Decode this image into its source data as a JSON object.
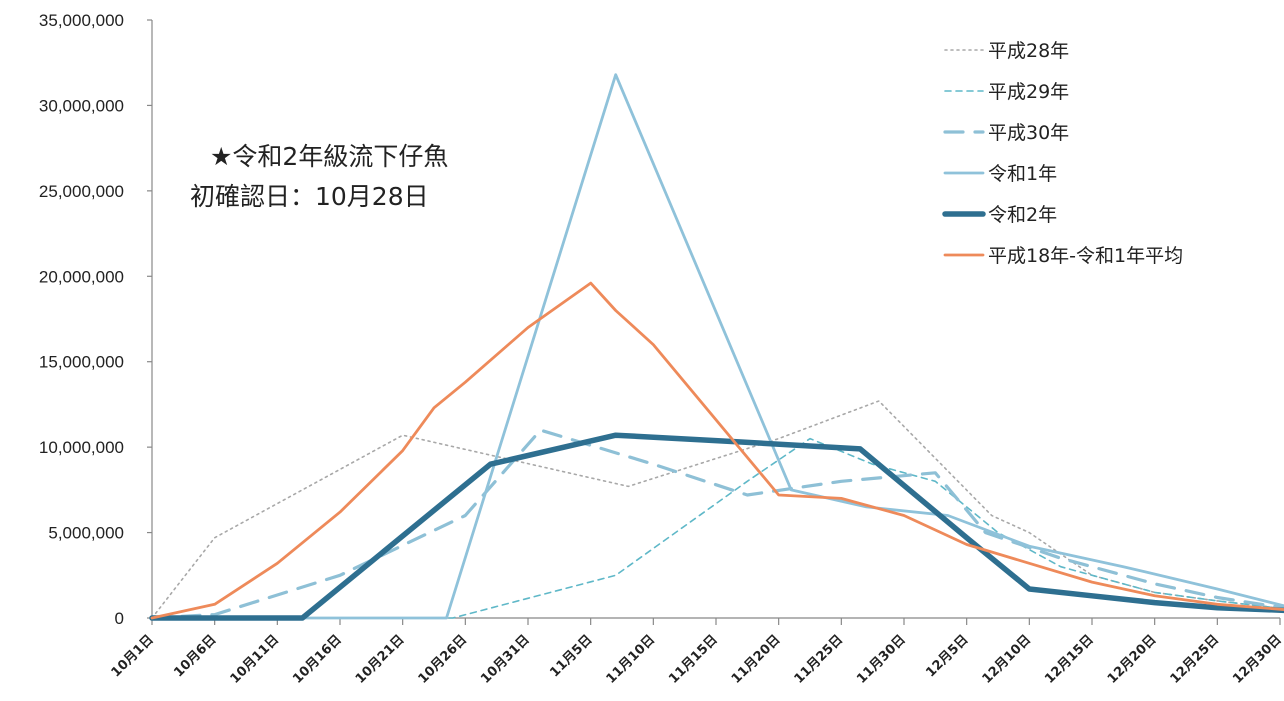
{
  "chart_data": {
    "type": "line",
    "annotation": [
      "★令和2年級流下仔魚",
      "初確認日：10月28日"
    ],
    "x": [
      "10月1日",
      "10月6日",
      "10月11日",
      "10月16日",
      "10月21日",
      "10月26日",
      "10月31日",
      "11月5日",
      "11月10日",
      "11月15日",
      "11月20日",
      "11月25日",
      "11月30日",
      "12月5日",
      "12月10日",
      "12月15日",
      "12月20日",
      "12月25日",
      "12月30日"
    ],
    "ylim": [
      0,
      35000000
    ],
    "yticks": [
      "0",
      "5,000,000",
      "10,000,000",
      "15,000,000",
      "20,000,000",
      "25,000,000",
      "30,000,000",
      "35,000,000"
    ],
    "grid": false,
    "legend_position": "top-right",
    "series": [
      {
        "name": "平成28年",
        "color": "#a8a8a8",
        "style": "dotted",
        "points": [
          [
            0,
            0
          ],
          [
            1,
            4700000
          ],
          [
            4,
            10700000
          ],
          [
            7.6,
            7700000
          ],
          [
            10,
            10500000
          ],
          [
            11.6,
            12700000
          ],
          [
            13.4,
            6000000
          ],
          [
            14,
            5000000
          ],
          [
            15,
            2500000
          ],
          [
            16,
            1500000
          ],
          [
            17,
            1000000
          ],
          [
            18.4,
            400000
          ]
        ]
      },
      {
        "name": "平成29年",
        "color": "#5fb8c8",
        "style": "dashed",
        "points": [
          [
            0,
            0
          ],
          [
            4.8,
            0
          ],
          [
            7.4,
            2500000
          ],
          [
            9.5,
            8000000
          ],
          [
            10.5,
            10500000
          ],
          [
            11.5,
            9000000
          ],
          [
            12.5,
            8000000
          ],
          [
            13.5,
            5000000
          ],
          [
            14.5,
            3000000
          ],
          [
            16,
            1500000
          ],
          [
            17,
            1000000
          ],
          [
            18.4,
            400000
          ]
        ]
      },
      {
        "name": "平成30年",
        "color": "#8ec0d6",
        "style": "longdash",
        "points": [
          [
            0,
            0
          ],
          [
            1,
            200000
          ],
          [
            3,
            2500000
          ],
          [
            5,
            6000000
          ],
          [
            6.2,
            11000000
          ],
          [
            8,
            9000000
          ],
          [
            9.5,
            7200000
          ],
          [
            11,
            8000000
          ],
          [
            12.5,
            8500000
          ],
          [
            13.3,
            5000000
          ],
          [
            14.5,
            3500000
          ],
          [
            16,
            2000000
          ],
          [
            17,
            1200000
          ],
          [
            18.4,
            400000
          ]
        ]
      },
      {
        "name": "令和1年",
        "color": "#8fc2da",
        "style": "solid",
        "points": [
          [
            0,
            0
          ],
          [
            4.7,
            0
          ],
          [
            7.4,
            31800000
          ],
          [
            10.2,
            7500000
          ],
          [
            11.4,
            6500000
          ],
          [
            12.7,
            6000000
          ],
          [
            14,
            4200000
          ],
          [
            15.5,
            3000000
          ],
          [
            17,
            1700000
          ],
          [
            18.4,
            400000
          ]
        ]
      },
      {
        "name": "令和2年",
        "color": "#2e6f90",
        "style": "thick",
        "points": [
          [
            0,
            0
          ],
          [
            2.4,
            0
          ],
          [
            5.4,
            9000000
          ],
          [
            7.4,
            10700000
          ],
          [
            9.4,
            10300000
          ],
          [
            11.3,
            9900000
          ],
          [
            13,
            4700000
          ],
          [
            14,
            1700000
          ],
          [
            15,
            1300000
          ],
          [
            16,
            900000
          ],
          [
            17,
            600000
          ],
          [
            18.4,
            400000
          ]
        ]
      },
      {
        "name": "平成18年-令和1年平均",
        "color": "#ee8a5a",
        "style": "solid",
        "points": [
          [
            0,
            0
          ],
          [
            1,
            800000
          ],
          [
            2,
            3200000
          ],
          [
            3,
            6200000
          ],
          [
            4,
            9800000
          ],
          [
            4.5,
            12300000
          ],
          [
            5,
            13800000
          ],
          [
            6,
            17000000
          ],
          [
            7,
            19600000
          ],
          [
            7.4,
            18000000
          ],
          [
            8,
            16000000
          ],
          [
            10,
            7200000
          ],
          [
            11,
            7000000
          ],
          [
            12,
            6000000
          ],
          [
            13,
            4300000
          ],
          [
            14,
            3200000
          ],
          [
            15,
            2100000
          ],
          [
            16,
            1300000
          ],
          [
            17,
            800000
          ],
          [
            18.4,
            400000
          ]
        ]
      }
    ]
  }
}
